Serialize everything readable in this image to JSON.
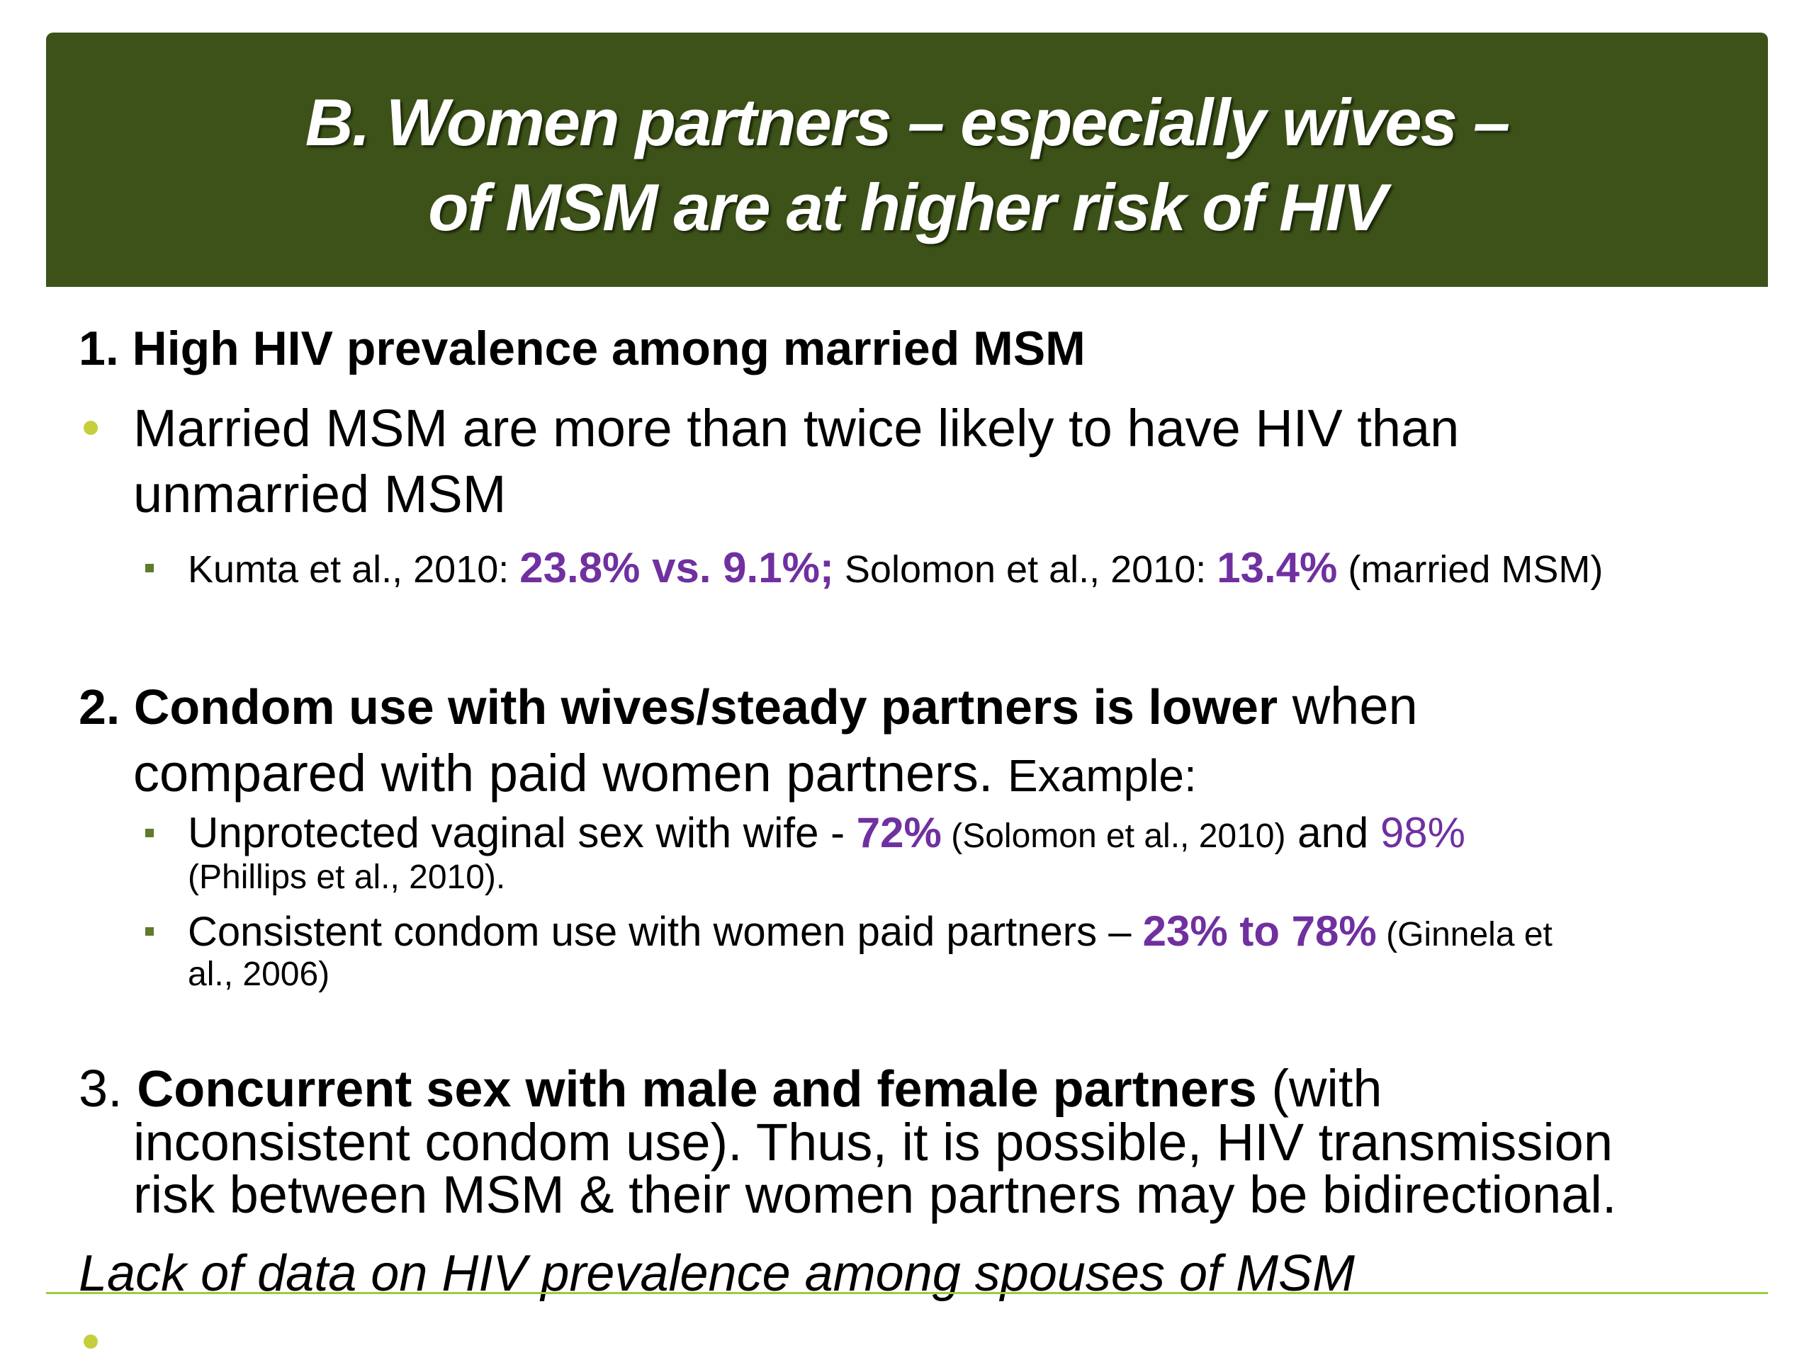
{
  "header": {
    "title": [
      "B. Women partners – especially wives –",
      "of MSM are at higher risk of HIV"
    ]
  },
  "body": {
    "s1": {
      "heading": "1. High HIV prevalence among married MSM",
      "bullet": [
        "Married MSM are more than twice likely to have HIV than",
        "unmarried MSM"
      ],
      "sub": [
        "Kumta et al., 2010: ",
        "23.8% vs. 9.1%;",
        " Solomon et al., 2010: ",
        "13.4%",
        " (married MSM)"
      ]
    },
    "s2": {
      "heading": [
        "2. Condom use with wives/steady partners is lower",
        " when",
        "compared with paid women partners. ",
        "Example:"
      ],
      "sub1": [
        "Unprotected vaginal sex with wife - ",
        "72%",
        " (Solomon et al., 2010)",
        " and ",
        "98%",
        "(Phillips et al., 2010)."
      ],
      "sub2": [
        "Consistent condom use with women paid partners – ",
        "23% to 78%",
        " (Ginnela et",
        "al., 2006)"
      ]
    },
    "s3": {
      "lines": [
        "3. ",
        "Concurrent sex with male and female partners",
        " (with",
        "inconsistent condom use). Thus, it is possible, HIV transmission",
        "risk between MSM & their women partners may be bidirectional."
      ]
    },
    "note": "Lack of data on HIV prevalence among spouses of MSM"
  }
}
